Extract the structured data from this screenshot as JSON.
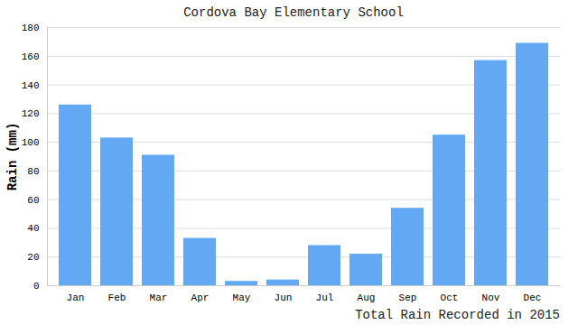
{
  "chart_data": {
    "type": "bar",
    "title": "Cordova Bay Elementary School",
    "ylabel": "Rain (mm)",
    "xlabel": "Total Rain Recorded in 2015",
    "categories": [
      "Jan",
      "Feb",
      "Mar",
      "Apr",
      "May",
      "Jun",
      "Jul",
      "Aug",
      "Sep",
      "Oct",
      "Nov",
      "Dec"
    ],
    "values": [
      126,
      103,
      91,
      33,
      3,
      4,
      28,
      22,
      54,
      105,
      157,
      169
    ],
    "color": "#62a8f3",
    "ylim": [
      0,
      180
    ],
    "yticks": [
      0,
      20,
      40,
      60,
      80,
      100,
      120,
      140,
      160,
      180
    ],
    "grid": true
  }
}
